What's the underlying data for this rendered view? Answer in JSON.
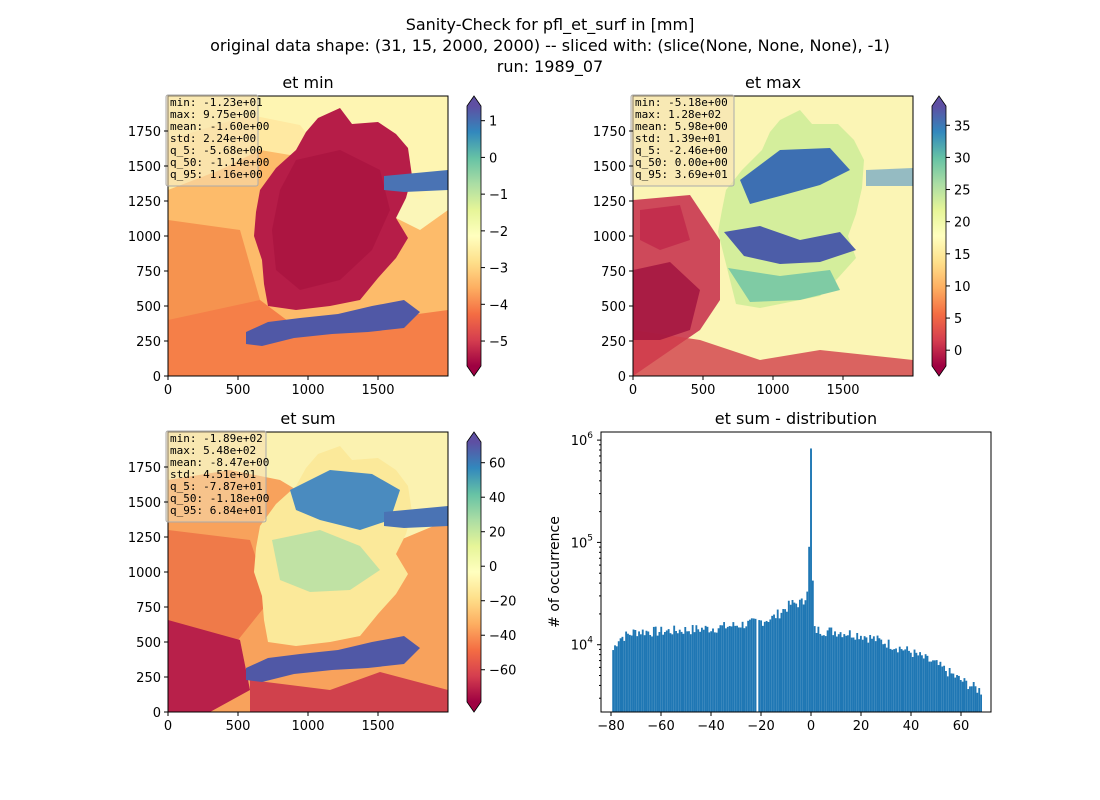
{
  "figure": {
    "title_lines": [
      "Sanity-Check for pfl_et_surf in [mm]",
      "original data shape: (31, 15, 2000, 2000) -- sliced with: (slice(None, None, None), -1)",
      "run: 1989_07"
    ]
  },
  "chart_data": [
    {
      "type": "heatmap",
      "title": "et min",
      "colormap": "Spectral",
      "xticks": [
        "0",
        "500",
        "1000",
        "1500"
      ],
      "yticks": [
        "0",
        "250",
        "500",
        "750",
        "1000",
        "1250",
        "1500",
        "1750"
      ],
      "xlim": [
        0,
        2000
      ],
      "ylim": [
        0,
        2000
      ],
      "colorbar": {
        "ticks": [
          "1",
          "0",
          "−1",
          "−2",
          "−3",
          "−4",
          "−5"
        ],
        "tick_values": [
          1,
          0,
          -1,
          -2,
          -3,
          -4,
          -5
        ],
        "range": [
          -5.68,
          1.4
        ],
        "extend": "both"
      },
      "stats": [
        "min: -1.23e+01",
        "max: 9.75e+00",
        "mean: -1.60e+00",
        "std: 2.24e+00",
        "q_5: -5.68e+00",
        "q_50: -1.14e+00",
        "q_95: 1.16e+00"
      ]
    },
    {
      "type": "heatmap",
      "title": "et max",
      "colormap": "Spectral",
      "xticks": [
        "0",
        "500",
        "1000",
        "1500"
      ],
      "yticks": [
        "0",
        "250",
        "500",
        "750",
        "1000",
        "1250",
        "1500",
        "1750"
      ],
      "xlim": [
        0,
        2000
      ],
      "ylim": [
        0,
        2000
      ],
      "colorbar": {
        "ticks": [
          "35",
          "30",
          "25",
          "20",
          "15",
          "10",
          "5",
          "0"
        ],
        "tick_values": [
          35,
          30,
          25,
          20,
          15,
          10,
          5,
          0
        ],
        "range": [
          -2.46,
          38
        ],
        "extend": "both"
      },
      "stats": [
        "min: -5.18e+00",
        "max: 1.28e+02",
        "mean: 5.98e+00",
        "std: 1.39e+01",
        "q_5: -2.46e+00",
        "q_50: 0.00e+00",
        "q_95: 3.69e+01"
      ]
    },
    {
      "type": "heatmap",
      "title": "et sum",
      "colormap": "Spectral",
      "xticks": [
        "0",
        "500",
        "1000",
        "1500"
      ],
      "yticks": [
        "0",
        "250",
        "500",
        "750",
        "1000",
        "1250",
        "1500",
        "1750"
      ],
      "xlim": [
        0,
        2000
      ],
      "ylim": [
        0,
        2000
      ],
      "colorbar": {
        "ticks": [
          "60",
          "40",
          "20",
          "0",
          "−20",
          "−40",
          "−60"
        ],
        "tick_values": [
          60,
          40,
          20,
          0,
          -20,
          -40,
          -60
        ],
        "range": [
          -78.7,
          72
        ],
        "extend": "both"
      },
      "stats": [
        "min: -1.89e+02",
        "max: 5.48e+02",
        "mean: -8.47e+00",
        "std: 4.51e+01",
        "q_5: -7.87e+01",
        "q_50: -1.18e+00",
        "q_95: 6.84e+01"
      ]
    },
    {
      "type": "bar",
      "title": "et sum - distribution",
      "ylabel": "# of occurrence",
      "xlabel": "",
      "yscale": "log",
      "xlim": [
        -84,
        72
      ],
      "ylim": [
        2200,
        1200000
      ],
      "xticks": [
        "−80",
        "−60",
        "−40",
        "−20",
        "0",
        "20",
        "40",
        "60"
      ],
      "xtick_values": [
        -80,
        -60,
        -40,
        -20,
        0,
        20,
        40,
        60
      ],
      "yticks": [
        {
          "base": "10",
          "exp": "4",
          "value": 10000
        },
        {
          "base": "10",
          "exp": "5",
          "value": 100000
        },
        {
          "base": "10",
          "exp": "6",
          "value": 1000000
        }
      ],
      "bin_range": [
        -79.5,
        68.4
      ],
      "profile": [
        {
          "x": -79.5,
          "y": 8500
        },
        {
          "x": -77,
          "y": 11500
        },
        {
          "x": -70,
          "y": 13500
        },
        {
          "x": -60,
          "y": 13500
        },
        {
          "x": -50,
          "y": 14000
        },
        {
          "x": -40,
          "y": 14500
        },
        {
          "x": -30,
          "y": 15500
        },
        {
          "x": -22,
          "y": 16500
        },
        {
          "x": -15,
          "y": 18500
        },
        {
          "x": -8,
          "y": 25000
        },
        {
          "x": -3,
          "y": 26000
        },
        {
          "x": -1,
          "y": 40000
        },
        {
          "x": 0,
          "y": 800000
        },
        {
          "x": 1,
          "y": 14000
        },
        {
          "x": 10,
          "y": 13500
        },
        {
          "x": 20,
          "y": 12500
        },
        {
          "x": 30,
          "y": 10500
        },
        {
          "x": 40,
          "y": 8500
        },
        {
          "x": 50,
          "y": 6500
        },
        {
          "x": 60,
          "y": 4500
        },
        {
          "x": 68.4,
          "y": 3500
        }
      ],
      "gaps": [
        -21.8
      ],
      "bar_color": "#1f77b4"
    }
  ]
}
